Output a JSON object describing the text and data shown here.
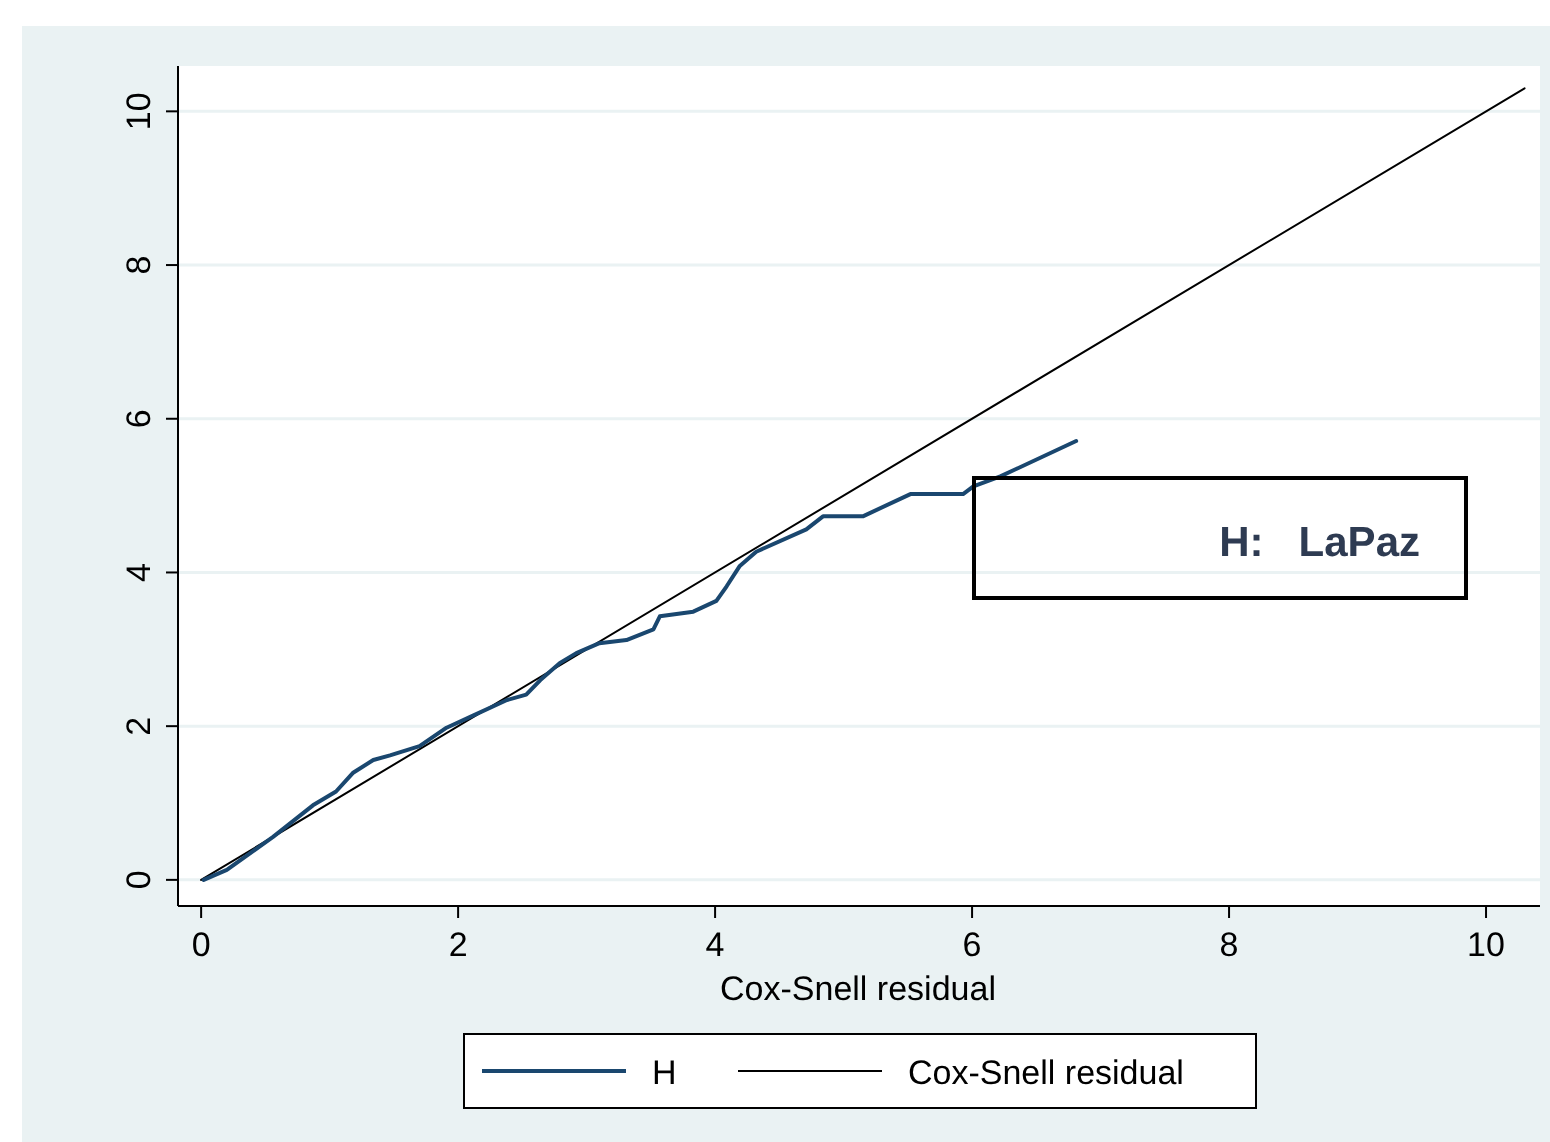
{
  "chart_data": {
    "type": "line",
    "xlabel": "Cox-Snell residual",
    "xlim": [
      -0.18,
      10.42
    ],
    "ylim": [
      -0.34,
      10.59
    ],
    "xticks": [
      0,
      2,
      4,
      6,
      8,
      10
    ],
    "yticks": [
      0,
      2,
      4,
      6,
      8,
      10
    ],
    "grid": "y",
    "legend": "bottom",
    "line_style": "solid",
    "marker": "none",
    "annotations": [
      "H:   LaPaz"
    ],
    "series": [
      {
        "name": "H",
        "color": "#1a476f",
        "x": [
          0.02,
          0.2,
          0.56,
          0.87,
          1.05,
          1.18,
          1.34,
          1.47,
          1.7,
          1.91,
          2.12,
          2.38,
          2.53,
          2.64,
          2.79,
          2.92,
          3.1,
          3.31,
          3.52,
          3.57,
          3.83,
          4.01,
          4.09,
          4.19,
          4.32,
          4.71,
          4.84,
          5.15,
          5.52,
          5.93,
          6.01,
          6.22,
          6.81
        ],
        "values": [
          0,
          0.13,
          0.56,
          0.97,
          1.15,
          1.39,
          1.56,
          1.62,
          1.74,
          1.98,
          2.14,
          2.34,
          2.41,
          2.6,
          2.82,
          2.95,
          3.08,
          3.12,
          3.26,
          3.43,
          3.49,
          3.63,
          3.82,
          4.08,
          4.27,
          4.56,
          4.73,
          4.73,
          5.02,
          5.02,
          5.12,
          5.25,
          5.71
        ]
      },
      {
        "name": "Cox-Snell residual",
        "color": "#000000",
        "x": [
          0,
          10.3
        ],
        "values": [
          0,
          10.3
        ]
      }
    ]
  }
}
